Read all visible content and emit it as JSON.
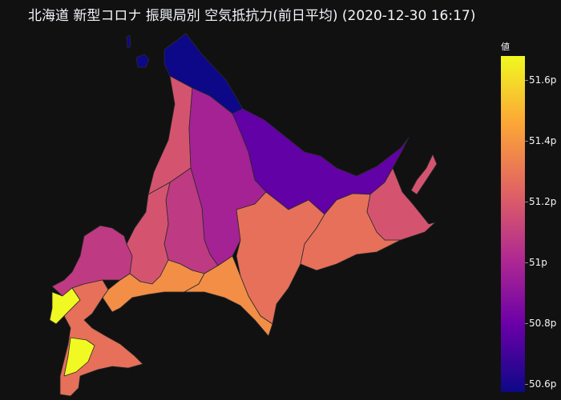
{
  "title": "北海道 新型コロナ 振興局別 空気抵抗力(前日平均) (2020-12-30 16:17)",
  "colorbar": {
    "title": "値",
    "ticks": [
      "51.6p",
      "51.4p",
      "51.2p",
      "51p",
      "50.8p",
      "50.6p"
    ],
    "colorscale": [
      "#0d0887",
      "#6a00a8",
      "#b12a90",
      "#e16462",
      "#fca636",
      "#f0f921"
    ]
  },
  "map_data": {
    "type": "choropleth",
    "unit": "p",
    "range": [
      50.6,
      51.7
    ],
    "regions": [
      {
        "region": "宗谷",
        "value": 50.6
      },
      {
        "region": "留萌",
        "value": 51.2
      },
      {
        "region": "上川",
        "value": 51.0
      },
      {
        "region": "オホーツク",
        "value": 50.8
      },
      {
        "region": "空知",
        "value": 51.1
      },
      {
        "region": "石狩",
        "value": 51.2
      },
      {
        "region": "後志",
        "value": 51.1
      },
      {
        "region": "十勝",
        "value": 51.3
      },
      {
        "region": "釧路",
        "value": 51.3
      },
      {
        "region": "根室",
        "value": 51.2
      },
      {
        "region": "胆振",
        "value": 51.4
      },
      {
        "region": "日高",
        "value": 51.4
      },
      {
        "region": "檜山",
        "value": 51.7
      },
      {
        "region": "渡島",
        "value": 51.3
      }
    ]
  }
}
